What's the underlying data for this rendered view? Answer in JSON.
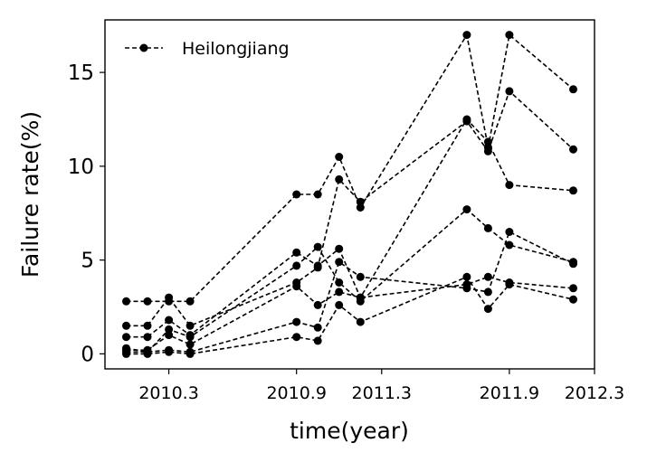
{
  "chart_data": {
    "type": "line",
    "xlabel": "time(year)",
    "ylabel": "Failure rate(%)",
    "xlim": [
      2010.0,
      2012.3
    ],
    "ylim": [
      -0.8,
      17.8
    ],
    "x_ticks": [
      2010.3,
      2010.9,
      2011.3,
      2011.9,
      2012.3
    ],
    "x_tick_labels": [
      "2010.3",
      "2010.9",
      "2011.3",
      "2011.9",
      "2012.3"
    ],
    "y_ticks": [
      0,
      5,
      10,
      15
    ],
    "y_tick_labels": [
      "0",
      "5",
      "10",
      "15"
    ],
    "legend": {
      "entries": [
        "Heilongjiang"
      ],
      "position": "top-left"
    },
    "grid": false,
    "color": "#000000",
    "x": [
      2010.1,
      2010.2,
      2010.3,
      2010.4,
      2010.9,
      2011.0,
      2011.1,
      2011.2,
      2011.7,
      2011.8,
      2011.9,
      2012.2
    ],
    "series": [
      {
        "name": "Heilongjiang",
        "values": [
          2.8,
          2.8,
          2.8,
          2.8,
          8.5,
          8.5,
          10.5,
          7.8,
          17.0,
          11.0,
          17.0,
          14.1
        ]
      },
      {
        "values": [
          1.5,
          1.5,
          3.0,
          1.5,
          3.8,
          4.6,
          9.3,
          8.1,
          12.4,
          10.8,
          14.0,
          10.9
        ]
      },
      {
        "values": [
          0.9,
          0.9,
          1.8,
          1.0,
          5.4,
          4.7,
          5.6,
          3.0,
          12.5,
          11.3,
          9.0,
          8.7
        ]
      },
      {
        "values": [
          0.3,
          0.1,
          1.3,
          0.9,
          4.7,
          5.7,
          3.8,
          2.8,
          7.7,
          6.7,
          5.8,
          4.9
        ]
      },
      {
        "values": [
          0.2,
          0.2,
          1.0,
          0.5,
          3.6,
          2.6,
          3.3,
          3.0,
          3.7,
          4.1,
          3.8,
          3.5
        ]
      },
      {
        "values": [
          0.1,
          0.1,
          0.2,
          0.1,
          1.7,
          1.4,
          4.9,
          4.1,
          3.5,
          3.3,
          6.5,
          4.8
        ]
      },
      {
        "values": [
          0.0,
          0.0,
          0.1,
          0.0,
          0.9,
          0.7,
          2.6,
          1.7,
          4.1,
          2.4,
          3.7,
          2.9
        ]
      }
    ]
  }
}
